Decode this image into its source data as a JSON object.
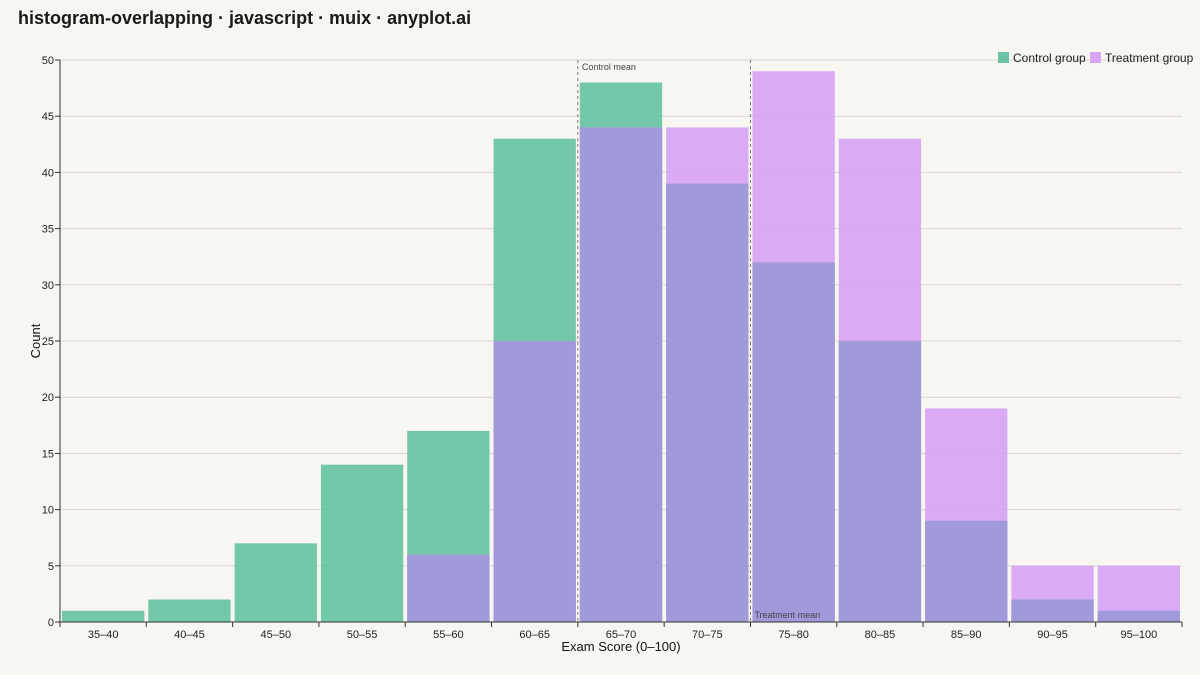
{
  "title": "histogram-overlapping · javascript · muix · anyplot.ai",
  "chart_data": {
    "type": "bar",
    "categories": [
      "35–40",
      "40–45",
      "45–50",
      "50–55",
      "55–60",
      "60–65",
      "65–70",
      "70–75",
      "75–80",
      "80–85",
      "85–90",
      "90–95",
      "95–100"
    ],
    "series": [
      {
        "name": "Control group",
        "values": [
          1,
          2,
          7,
          14,
          17,
          43,
          48,
          39,
          32,
          25,
          9,
          2,
          1
        ],
        "color": "#5bbf9c"
      },
      {
        "name": "Treatment group",
        "values": [
          0,
          0,
          0,
          0,
          6,
          25,
          44,
          44,
          49,
          43,
          19,
          5,
          5
        ],
        "color": "#d59cf5"
      }
    ],
    "overlap_color": "#a09adb",
    "xlabel": "Exam Score (0–100)",
    "ylabel": "Count",
    "ylim": [
      0,
      50
    ],
    "yticks": [
      0,
      5,
      10,
      15,
      20,
      25,
      30,
      35,
      40,
      45,
      50
    ],
    "grid": true,
    "legend_position": "top-right",
    "annotations": [
      {
        "label": "Control mean",
        "category": "65–70",
        "edge": "left",
        "label_position": "top"
      },
      {
        "label": "Treatment mean",
        "category": "75–80",
        "edge": "left",
        "label_position": "bottom"
      }
    ]
  }
}
